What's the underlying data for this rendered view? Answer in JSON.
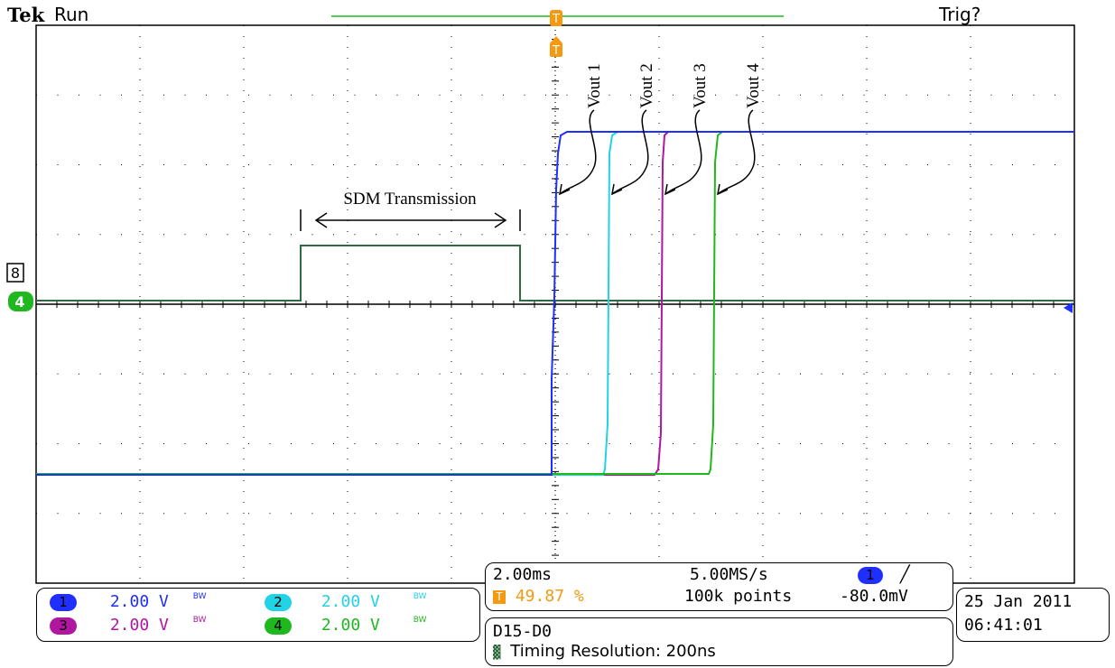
{
  "header": {
    "brand": "Tek",
    "run_state": "Run",
    "trigger_state": "Trig?"
  },
  "annotations": {
    "sdm_label": "SDM Transmission",
    "vout_labels": [
      "Vout 1",
      "Vout 2",
      "Vout 3",
      "Vout 4"
    ]
  },
  "markers": {
    "trigger_T": "T",
    "ref_8": "8",
    "ch4_marker": "4"
  },
  "channels": [
    {
      "id": "1",
      "scale": "2.00 V",
      "bw": "BW",
      "color": "#1f2fff"
    },
    {
      "id": "2",
      "scale": "2.00 V",
      "bw": "BW",
      "color": "#22d3e6"
    },
    {
      "id": "3",
      "scale": "2.00 V",
      "bw": "BW",
      "color": "#b0169f"
    },
    {
      "id": "4",
      "scale": "2.00 V",
      "bw": "BW",
      "color": "#1fb81f"
    }
  ],
  "acquisition": {
    "timebase": "2.00ms",
    "sample_rate": "5.00MS/s",
    "trigger_pos": "49.87 %",
    "record_length": "100k points",
    "trigger_source": "1",
    "trigger_level": "-80.0mV"
  },
  "digital": {
    "bus": "D15-D0",
    "timing_resolution": "Timing Resolution: 200ns"
  },
  "datetime": {
    "date": "25 Jan  2011",
    "time": "06:41:01"
  },
  "colors": {
    "ch1": "#1f2fff",
    "ch2": "#22d3e6",
    "ch3": "#b0169f",
    "ch4": "#1fb81f",
    "digital": "#2f6b3f",
    "trigger": "#f39a12",
    "grid": "#000000"
  }
}
